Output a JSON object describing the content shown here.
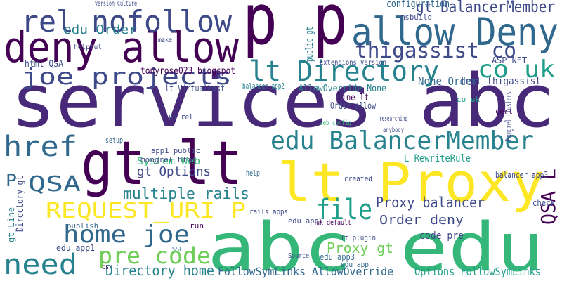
{
  "chart_data": {
    "type": "wordcloud",
    "words": [
      "services abc",
      "abc edu",
      "gt lt",
      "lt Proxy",
      "p p",
      "allow Deny",
      "deny allow",
      "rel nofollow",
      "thigassist co",
      "gt BalancerMember",
      "edu Order",
      "joe projects",
      "lt Directory",
      "co uk",
      "edu BalancerMember",
      "href",
      "QSA",
      "P",
      "REQUEST_URI P",
      "multiple rails",
      "home joe",
      "need",
      "pre code",
      "Directory home",
      "file",
      "Proxy balancer",
      "Order deny",
      "Proxy gt",
      "QSA L",
      "gt Options",
      "System Web",
      "FollowSymLinks AllowOverride",
      "Options FollowSymLinks",
      "None Order",
      "test thigassist",
      "lt VirtualHost",
      "tonyrose023 blogspot",
      "html QSA",
      "AllowOverride None",
      "balancer app2",
      "Order allow",
      "line lt",
      "L RewriteRule",
      "balancer app3",
      "check",
      "code pre",
      "edu app3",
      "lt plugin",
      "configuration",
      "msbuild",
      "Version Culture",
      "public gt",
      "mongrel html",
      "app1 public",
      "edu app1",
      "publish",
      "rails apps",
      "Directory gt",
      "gt Line",
      "cert",
      "uk rel",
      "Extensions Version",
      "created",
      "help",
      "run",
      "SSL",
      "csr",
      "setup",
      "web config",
      "researching",
      "anybody",
      "Mongrel clusters",
      "ASP NET",
      "co uk",
      "edu app2",
      "uk default",
      "Source",
      "edu app",
      "make",
      "helpful"
    ],
    "colors": [
      "#482878",
      "#35b779",
      "#440154",
      "#fde725",
      "#440154",
      "#31688e",
      "#440154",
      "#3e4989",
      "#3e4989",
      "#3e4989",
      "#26828e",
      "#3e4989",
      "#26828e",
      "#1f9e89",
      "#26828e",
      "#31688e",
      "#31688e",
      "#31688e",
      "#fde725",
      "#26828e",
      "#31688e",
      "#26828e",
      "#6ece58",
      "#26828e",
      "#1f9e89",
      "#3e4989",
      "#3e4989",
      "#6ece58",
      "#440154",
      "#3e4989",
      "#35b779",
      "#31688e",
      "#1f9e89",
      "#31688e",
      "#3e4989",
      "#3e4989",
      "#440154",
      "#3e4989",
      "#26828e",
      "#26828e",
      "#3e4989",
      "#440154",
      "#1f9e89",
      "#3e4989",
      "#3e4989",
      "#3e4989",
      "#31688e",
      "#3e4989",
      "#31688e",
      "#3e4989",
      "#3e4989",
      "#26828e",
      "#3e4989",
      "#3e4989",
      "#3e4989",
      "#31688e",
      "#3e4989",
      "#3e4989",
      "#26828e",
      "#440154",
      "#3e4989",
      "#3e4989",
      "#3e4989",
      "#31688e",
      "#440154",
      "#26828e",
      "#440154",
      "#31688e",
      "#35b779",
      "#3e4989",
      "#3e4989",
      "#3e4989",
      "#3e4989",
      "#1f9e89",
      "#3e4989",
      "#440154",
      "#3e4989",
      "#31688e",
      "#3e4989",
      "#3e4989"
    ]
  }
}
